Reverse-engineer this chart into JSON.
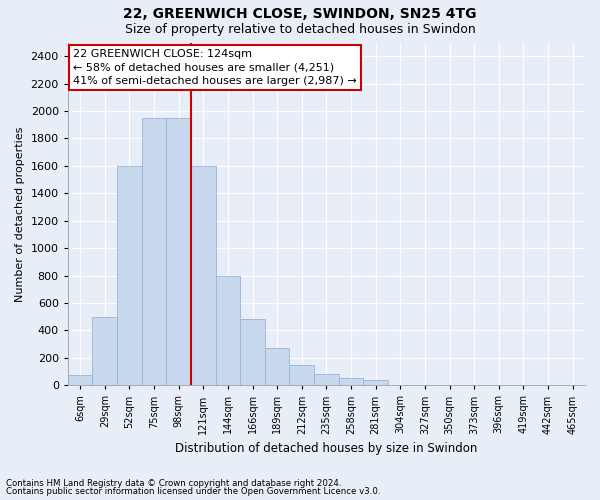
{
  "title1": "22, GREENWICH CLOSE, SWINDON, SN25 4TG",
  "title2": "Size of property relative to detached houses in Swindon",
  "xlabel": "Distribution of detached houses by size in Swindon",
  "ylabel": "Number of detached properties",
  "footnote1": "Contains HM Land Registry data © Crown copyright and database right 2024.",
  "footnote2": "Contains public sector information licensed under the Open Government Licence v3.0.",
  "bar_labels": [
    "6sqm",
    "29sqm",
    "52sqm",
    "75sqm",
    "98sqm",
    "121sqm",
    "144sqm",
    "166sqm",
    "189sqm",
    "212sqm",
    "235sqm",
    "258sqm",
    "281sqm",
    "304sqm",
    "327sqm",
    "350sqm",
    "373sqm",
    "396sqm",
    "419sqm",
    "442sqm",
    "465sqm"
  ],
  "bar_values": [
    75,
    500,
    1600,
    1950,
    1950,
    1600,
    800,
    480,
    270,
    150,
    80,
    50,
    40,
    0,
    0,
    0,
    0,
    0,
    0,
    0,
    0
  ],
  "bar_color": "#c8d9ef",
  "bar_edge_color": "#9ab3d5",
  "red_line_x": 5,
  "annotation_text": "22 GREENWICH CLOSE: 124sqm\n← 58% of detached houses are smaller (4,251)\n41% of semi-detached houses are larger (2,987) →",
  "annotation_box_color": "#ffffff",
  "annotation_box_edge": "#cc0000",
  "red_line_color": "#cc0000",
  "ylim": [
    0,
    2500
  ],
  "yticks": [
    0,
    200,
    400,
    600,
    800,
    1000,
    1200,
    1400,
    1600,
    1800,
    2000,
    2200,
    2400
  ],
  "bg_color": "#e8eef8",
  "plot_bg_color": "#e8eef8",
  "grid_color": "#ffffff"
}
